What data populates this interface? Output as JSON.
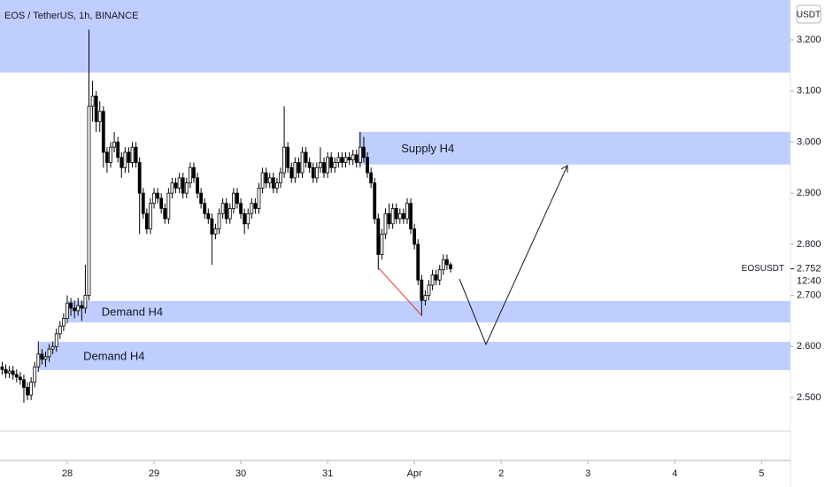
{
  "chart_data": {
    "type": "candlestick",
    "title": "EOS / TetherUS, 1h, BINANCE",
    "currency": "USDT",
    "up_color": "#ffffff",
    "down_color": "#000000",
    "zone_color": "rgba(122,152,255,0.48)",
    "xlim": [
      -18.6,
      200
    ],
    "ylim": [
      2.377,
      3.278
    ],
    "xticks": [
      {
        "value": 0,
        "label": "28"
      },
      {
        "value": 24,
        "label": "29"
      },
      {
        "value": 48,
        "label": "30"
      },
      {
        "value": 72,
        "label": "31"
      },
      {
        "value": 96,
        "label": "Apr"
      },
      {
        "value": 120,
        "label": "2"
      },
      {
        "value": 144,
        "label": "3"
      },
      {
        "value": 168,
        "label": "4"
      },
      {
        "value": 192,
        "label": "5"
      }
    ],
    "yticks": [
      {
        "value": 2.5,
        "label": "2.500"
      },
      {
        "value": 2.6,
        "label": "2.600"
      },
      {
        "value": 2.7,
        "label": "2.700"
      },
      {
        "value": 2.8,
        "label": "2.800"
      },
      {
        "value": 2.9,
        "label": "2.900"
      },
      {
        "value": 3.0,
        "label": "3.000"
      },
      {
        "value": 3.1,
        "label": "3.100"
      },
      {
        "value": 3.2,
        "label": "3.200"
      }
    ],
    "last_price": {
      "symbol": "EOSUSDT",
      "value": 2.752,
      "label": "2.752",
      "countdown": "12:40"
    },
    "zones": [
      {
        "from": -18.6,
        "top": 3.278,
        "bottom": 3.136
      },
      {
        "label": "Supply H4",
        "from": 80.6,
        "top": 3.02,
        "bottom": 2.956
      },
      {
        "label": "Demand H4",
        "from": 0.2,
        "top": 2.689,
        "bottom": 2.647
      },
      {
        "label": "Demand H4",
        "from": -7.8,
        "top": 2.609,
        "bottom": 2.554
      }
    ],
    "x": [
      -18,
      -17,
      -16,
      -15,
      -14,
      -13,
      -12,
      -11,
      -10,
      -9,
      -8,
      -7,
      -6,
      -5,
      -4,
      -3,
      -2,
      -1,
      0,
      1,
      2,
      3,
      4,
      5,
      6,
      7,
      8,
      9,
      10,
      11,
      12,
      13,
      14,
      15,
      16,
      17,
      18,
      19,
      20,
      21,
      22,
      23,
      24,
      25,
      26,
      27,
      28,
      29,
      30,
      31,
      32,
      33,
      34,
      35,
      36,
      37,
      38,
      39,
      40,
      41,
      42,
      43,
      44,
      45,
      46,
      47,
      48,
      49,
      50,
      51,
      52,
      53,
      54,
      55,
      56,
      57,
      58,
      59,
      60,
      61,
      62,
      63,
      64,
      65,
      66,
      67,
      68,
      69,
      70,
      71,
      72,
      73,
      74,
      75,
      76,
      77,
      78,
      79,
      80,
      81,
      82,
      83,
      84,
      85,
      86,
      87,
      88,
      89,
      90,
      91,
      92,
      93,
      94,
      95,
      96,
      97,
      98,
      99,
      100,
      101,
      102,
      103,
      104,
      105,
      106
    ],
    "open": [
      2.56,
      2.555,
      2.548,
      2.552,
      2.545,
      2.54,
      2.535,
      2.52,
      2.505,
      2.53,
      2.56,
      2.585,
      2.575,
      2.58,
      2.595,
      2.6,
      2.625,
      2.64,
      2.655,
      2.685,
      2.675,
      2.67,
      2.68,
      2.675,
      2.7,
      3.07,
      3.09,
      3.04,
      3.06,
      2.98,
      2.96,
      2.99,
      3.0,
      2.97,
      2.95,
      2.98,
      2.96,
      2.99,
      2.96,
      2.9,
      2.86,
      2.83,
      2.88,
      2.9,
      2.89,
      2.87,
      2.85,
      2.9,
      2.92,
      2.91,
      2.93,
      2.9,
      2.92,
      2.95,
      2.93,
      2.9,
      2.88,
      2.86,
      2.85,
      2.82,
      2.83,
      2.86,
      2.88,
      2.85,
      2.87,
      2.9,
      2.88,
      2.86,
      2.84,
      2.86,
      2.88,
      2.87,
      2.91,
      2.94,
      2.92,
      2.93,
      2.91,
      2.92,
      2.94,
      2.99,
      2.95,
      2.93,
      2.96,
      2.94,
      2.98,
      2.96,
      2.95,
      2.93,
      2.95,
      2.96,
      2.94,
      2.97,
      2.95,
      2.96,
      2.97,
      2.96,
      2.97,
      2.965,
      2.975,
      2.96,
      2.99,
      2.97,
      2.94,
      2.92,
      2.85,
      2.78,
      2.82,
      2.86,
      2.84,
      2.87,
      2.85,
      2.86,
      2.85,
      2.88,
      2.83,
      2.8,
      2.73,
      2.69,
      2.7,
      2.72,
      2.74,
      2.73,
      2.75,
      2.77,
      2.76
    ],
    "high": [
      2.57,
      2.565,
      2.562,
      2.562,
      2.555,
      2.55,
      2.545,
      2.53,
      2.54,
      2.57,
      2.61,
      2.595,
      2.59,
      2.605,
      2.61,
      2.635,
      2.65,
      2.665,
      2.7,
      2.695,
      2.69,
      2.695,
      2.69,
      2.76,
      3.22,
      3.12,
      3.1,
      3.08,
      3.07,
      2.99,
      3.0,
      3.02,
      3.01,
      2.98,
      2.99,
      2.99,
      3.0,
      3.0,
      2.97,
      2.91,
      2.87,
      2.89,
      2.91,
      2.91,
      2.9,
      2.88,
      2.91,
      2.93,
      2.93,
      2.94,
      2.94,
      2.93,
      2.96,
      2.96,
      2.94,
      2.91,
      2.89,
      2.87,
      2.86,
      2.84,
      2.87,
      2.89,
      2.89,
      2.88,
      2.91,
      2.91,
      2.89,
      2.87,
      2.87,
      2.89,
      2.89,
      2.92,
      2.95,
      2.95,
      2.94,
      2.94,
      2.93,
      2.95,
      3.07,
      3.0,
      2.96,
      2.97,
      2.97,
      2.99,
      2.99,
      2.97,
      2.96,
      2.96,
      2.99,
      2.97,
      2.98,
      2.98,
      2.97,
      2.98,
      2.98,
      2.98,
      2.98,
      2.985,
      2.985,
      3.02,
      3.01,
      2.98,
      2.95,
      2.93,
      2.86,
      2.83,
      2.87,
      2.88,
      2.88,
      2.88,
      2.87,
      2.87,
      2.89,
      2.89,
      2.84,
      2.81,
      2.74,
      2.71,
      2.73,
      2.75,
      2.75,
      2.76,
      2.78,
      2.78,
      2.765
    ],
    "low": [
      2.545,
      2.538,
      2.538,
      2.535,
      2.53,
      2.525,
      2.49,
      2.495,
      2.495,
      2.52,
      2.55,
      2.565,
      2.56,
      2.57,
      2.585,
      2.59,
      2.615,
      2.63,
      2.645,
      2.66,
      2.655,
      2.66,
      2.65,
      2.665,
      2.69,
      3.04,
      3.02,
      3.02,
      2.95,
      2.94,
      2.95,
      2.98,
      2.96,
      2.93,
      2.94,
      2.94,
      2.95,
      2.95,
      2.82,
      2.85,
      2.82,
      2.82,
      2.87,
      2.88,
      2.86,
      2.84,
      2.84,
      2.89,
      2.9,
      2.9,
      2.89,
      2.89,
      2.91,
      2.92,
      2.89,
      2.87,
      2.85,
      2.84,
      2.76,
      2.81,
      2.82,
      2.85,
      2.84,
      2.84,
      2.86,
      2.87,
      2.85,
      2.82,
      2.83,
      2.85,
      2.86,
      2.86,
      2.9,
      2.91,
      2.91,
      2.9,
      2.9,
      2.91,
      2.93,
      2.94,
      2.92,
      2.92,
      2.93,
      2.93,
      2.95,
      2.94,
      2.92,
      2.92,
      2.94,
      2.93,
      2.93,
      2.94,
      2.94,
      2.95,
      2.95,
      2.95,
      2.955,
      2.955,
      2.95,
      2.95,
      2.96,
      2.93,
      2.91,
      2.84,
      2.75,
      2.77,
      2.81,
      2.83,
      2.83,
      2.84,
      2.84,
      2.84,
      2.84,
      2.82,
      2.79,
      2.72,
      2.66,
      2.68,
      2.69,
      2.71,
      2.72,
      2.72,
      2.74,
      2.75,
      2.745
    ],
    "close": [
      2.555,
      2.548,
      2.552,
      2.545,
      2.54,
      2.535,
      2.52,
      2.505,
      2.53,
      2.56,
      2.585,
      2.575,
      2.58,
      2.595,
      2.6,
      2.625,
      2.64,
      2.655,
      2.685,
      2.675,
      2.67,
      2.68,
      2.675,
      2.7,
      3.07,
      3.09,
      3.04,
      3.06,
      2.98,
      2.96,
      2.99,
      3.0,
      2.97,
      2.95,
      2.98,
      2.96,
      2.99,
      2.96,
      2.9,
      2.86,
      2.83,
      2.88,
      2.9,
      2.89,
      2.87,
      2.85,
      2.9,
      2.92,
      2.91,
      2.93,
      2.9,
      2.92,
      2.95,
      2.93,
      2.9,
      2.88,
      2.86,
      2.85,
      2.82,
      2.83,
      2.86,
      2.88,
      2.85,
      2.87,
      2.9,
      2.88,
      2.86,
      2.84,
      2.86,
      2.88,
      2.87,
      2.91,
      2.94,
      2.92,
      2.93,
      2.91,
      2.92,
      2.94,
      2.99,
      2.95,
      2.93,
      2.96,
      2.94,
      2.98,
      2.96,
      2.95,
      2.93,
      2.95,
      2.96,
      2.94,
      2.97,
      2.95,
      2.96,
      2.97,
      2.96,
      2.97,
      2.965,
      2.975,
      2.96,
      2.99,
      2.97,
      2.94,
      2.92,
      2.85,
      2.78,
      2.82,
      2.86,
      2.84,
      2.87,
      2.85,
      2.86,
      2.85,
      2.88,
      2.83,
      2.8,
      2.73,
      2.69,
      2.7,
      2.72,
      2.74,
      2.73,
      2.75,
      2.77,
      2.76,
      2.752
    ]
  }
}
